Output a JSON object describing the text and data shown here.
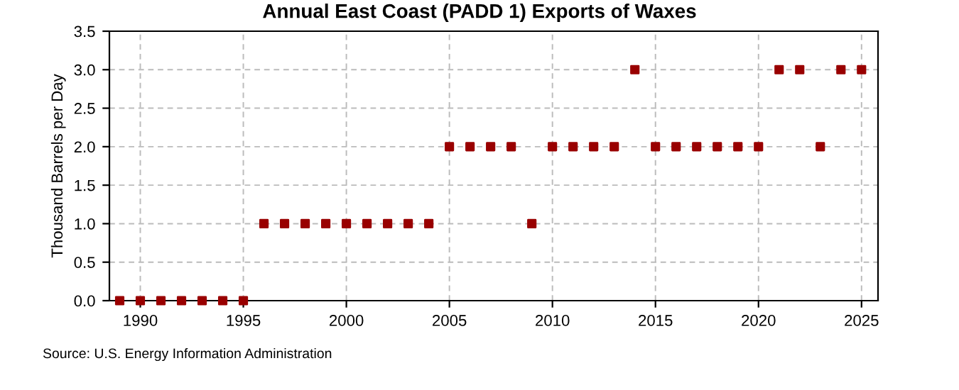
{
  "chart_data": {
    "type": "scatter",
    "title": "Annual East Coast (PADD 1) Exports of Waxes",
    "ylabel": "Thousand Barrels per Day",
    "x": [
      1989,
      1990,
      1991,
      1992,
      1993,
      1994,
      1995,
      1996,
      1997,
      1998,
      1999,
      2000,
      2001,
      2002,
      2003,
      2004,
      2005,
      2006,
      2007,
      2008,
      2009,
      2010,
      2011,
      2012,
      2013,
      2014,
      2015,
      2016,
      2017,
      2018,
      2019,
      2020,
      2021,
      2022,
      2023,
      2024,
      2025
    ],
    "series": [
      {
        "color": "#990000",
        "values": [
          0,
          0,
          0,
          0,
          0,
          0,
          0,
          1,
          1,
          1,
          1,
          1,
          1,
          1,
          1,
          1,
          2,
          2,
          2,
          2,
          1,
          2,
          2,
          2,
          2,
          3,
          2,
          2,
          2,
          2,
          2,
          2,
          3,
          3,
          2,
          3,
          3
        ]
      }
    ],
    "xlim": [
      1988.5,
      2025.8
    ],
    "xticks": [
      1990,
      1995,
      2000,
      2005,
      2010,
      2015,
      2020,
      2025
    ],
    "ylim": [
      0,
      3.5
    ],
    "yticks": [
      {
        "value": 0,
        "label": "0.0"
      },
      {
        "value": 0.5,
        "label": "0.5"
      },
      {
        "value": 1,
        "label": "1.0"
      },
      {
        "value": 1.5,
        "label": "1.5"
      },
      {
        "value": 2,
        "label": "2.0"
      },
      {
        "value": 2.5,
        "label": "2.5"
      },
      {
        "value": 3,
        "label": "3.0"
      },
      {
        "value": 3.5,
        "label": "3.5"
      }
    ],
    "grid": true,
    "marker": "square",
    "annotations": [
      "Source: U.S. Energy Information Administration"
    ]
  }
}
